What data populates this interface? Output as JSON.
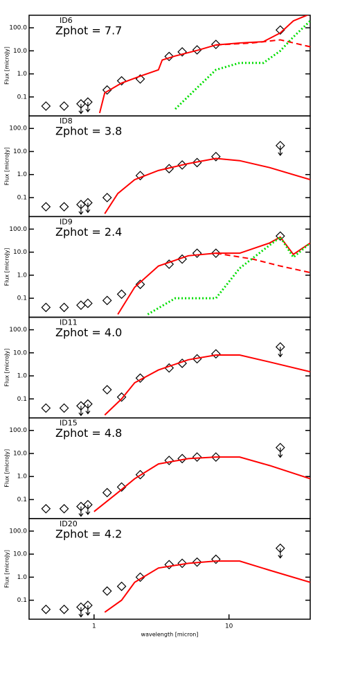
{
  "chart_data": [
    {
      "type": "line",
      "title": "ID6",
      "annotation": "Zphot = 7.7",
      "ylabel": "Flux [microJy]",
      "log_x": true,
      "log_y": true,
      "xlim": [
        0.33,
        40
      ],
      "ylim": [
        0.015,
        350
      ],
      "yticks": [
        0.1,
        {
          "value": 1,
          "label": "1.0"
        },
        {
          "value": 10,
          "label": "10.0"
        },
        {
          "value": 100,
          "label": "100.0"
        }
      ],
      "series": [
        {
          "color": "#000000",
          "marker": "diamond",
          "x": [
            0.44,
            0.6,
            0.8,
            0.9,
            1.25,
            1.6,
            2.2,
            3.6,
            4.5,
            5.8,
            8.0,
            24
          ],
          "values": [
            0.04,
            0.04,
            0.05,
            0.06,
            0.2,
            0.5,
            0.6,
            5.7,
            9,
            11,
            19,
            80
          ],
          "upper_limit": [
            false,
            false,
            true,
            true,
            false,
            false,
            false,
            false,
            false,
            false,
            false,
            false
          ]
        },
        {
          "color": "#ff0000",
          "style": "solid",
          "x": [
            1.1,
            1.2,
            1.6,
            2.2,
            3.0,
            3.2,
            4.0,
            6.0,
            8.0,
            12,
            18,
            24,
            30,
            40
          ],
          "values": [
            0.02,
            0.15,
            0.4,
            0.8,
            1.5,
            4,
            6,
            11,
            18,
            22,
            25,
            60,
            200,
            400
          ]
        },
        {
          "color": "#ff0000",
          "style": "dashed",
          "x": [
            8.0,
            15,
            24,
            40
          ],
          "values": [
            18,
            22,
            30,
            15
          ]
        },
        {
          "color": "#00dd00",
          "style": "dotted",
          "x": [
            4.0,
            6.0,
            8.0,
            12,
            18,
            24,
            30,
            40
          ],
          "values": [
            0.03,
            0.3,
            1.5,
            3,
            3,
            10,
            40,
            200
          ]
        }
      ]
    },
    {
      "type": "line",
      "title": "ID8",
      "annotation": "Zphot = 3.8",
      "ylabel": "Flux [microJy]",
      "log_x": true,
      "log_y": true,
      "xlim": [
        0.33,
        40
      ],
      "ylim": [
        0.015,
        350
      ],
      "yticks": [
        0.1,
        {
          "value": 1,
          "label": "1.0"
        },
        {
          "value": 10,
          "label": "10.0"
        },
        {
          "value": 100,
          "label": "100.0"
        }
      ],
      "series": [
        {
          "color": "#000000",
          "marker": "diamond",
          "x": [
            0.44,
            0.6,
            0.8,
            0.9,
            1.25,
            1.6,
            2.2,
            3.6,
            4.5,
            5.8,
            8.0,
            24
          ],
          "values": [
            0.04,
            0.04,
            0.05,
            0.06,
            0.1,
            null,
            0.9,
            1.8,
            2.6,
            3.3,
            6,
            18
          ],
          "upper_limit": [
            false,
            false,
            true,
            true,
            false,
            false,
            false,
            false,
            false,
            false,
            false,
            true
          ]
        },
        {
          "color": "#ff0000",
          "style": "solid",
          "x": [
            1.2,
            1.5,
            2.0,
            3.0,
            5.0,
            8.0,
            12,
            20,
            40
          ],
          "values": [
            0.02,
            0.15,
            0.6,
            1.5,
            3,
            5,
            4,
            2,
            0.6
          ]
        }
      ]
    },
    {
      "type": "line",
      "title": "ID9",
      "annotation": "Zphot = 2.4",
      "ylabel": "Flux [microJy]",
      "log_x": true,
      "log_y": true,
      "xlim": [
        0.33,
        40
      ],
      "ylim": [
        0.015,
        350
      ],
      "yticks": [
        0.1,
        {
          "value": 1,
          "label": "1.0"
        },
        {
          "value": 10,
          "label": "10.0"
        },
        {
          "value": 100,
          "label": "100.0"
        }
      ],
      "series": [
        {
          "color": "#000000",
          "marker": "diamond",
          "x": [
            0.44,
            0.6,
            0.8,
            0.9,
            1.25,
            1.6,
            2.2,
            3.6,
            4.5,
            5.8,
            8.0,
            24
          ],
          "values": [
            0.04,
            0.04,
            0.05,
            0.06,
            0.08,
            0.15,
            0.4,
            3,
            5,
            9,
            9,
            50
          ],
          "upper_limit": [
            false,
            false,
            false,
            false,
            false,
            false,
            false,
            false,
            false,
            false,
            false,
            false
          ]
        },
        {
          "color": "#ff0000",
          "style": "solid",
          "x": [
            1.5,
            2.0,
            3.0,
            5.0,
            8.0,
            12,
            20,
            24,
            30,
            40
          ],
          "values": [
            0.02,
            0.3,
            2.5,
            7,
            9,
            9,
            25,
            45,
            8,
            25
          ]
        },
        {
          "color": "#ff0000",
          "style": "dashed",
          "x": [
            8.0,
            15,
            24,
            40
          ],
          "values": [
            9,
            5,
            2.5,
            1.3
          ]
        },
        {
          "color": "#00dd00",
          "style": "dotted",
          "x": [
            2.5,
            4.0,
            8.0,
            12,
            20,
            24,
            30,
            40
          ],
          "values": [
            0.02,
            0.1,
            0.1,
            2,
            20,
            45,
            6,
            25
          ]
        }
      ]
    },
    {
      "type": "line",
      "title": "ID11",
      "annotation": "Zphot = 4.0",
      "ylabel": "Flux [microJy]",
      "log_x": true,
      "log_y": true,
      "xlim": [
        0.33,
        40
      ],
      "ylim": [
        0.015,
        350
      ],
      "yticks": [
        0.1,
        {
          "value": 1,
          "label": "1.0"
        },
        {
          "value": 10,
          "label": "10.0"
        },
        {
          "value": 100,
          "label": "100.0"
        }
      ],
      "series": [
        {
          "color": "#000000",
          "marker": "diamond",
          "x": [
            0.44,
            0.6,
            0.8,
            0.9,
            1.25,
            1.6,
            2.2,
            3.6,
            4.5,
            5.8,
            8.0,
            24
          ],
          "values": [
            0.04,
            0.04,
            0.05,
            0.06,
            0.25,
            0.12,
            0.8,
            2.2,
            3.5,
            5.5,
            9,
            18
          ],
          "upper_limit": [
            false,
            false,
            true,
            true,
            false,
            false,
            false,
            false,
            false,
            false,
            false,
            true
          ]
        },
        {
          "color": "#ff0000",
          "style": "solid",
          "x": [
            1.2,
            1.6,
            2.0,
            3.0,
            5.0,
            8.0,
            12,
            20,
            40
          ],
          "values": [
            0.02,
            0.1,
            0.5,
            1.8,
            5,
            8,
            8,
            4,
            1.5
          ]
        }
      ]
    },
    {
      "type": "line",
      "title": "ID15",
      "annotation": "Zphot = 4.8",
      "ylabel": "Flux [microJy]",
      "log_x": true,
      "log_y": true,
      "xlim": [
        0.33,
        40
      ],
      "ylim": [
        0.015,
        350
      ],
      "yticks": [
        0.1,
        {
          "value": 1,
          "label": "1.0"
        },
        {
          "value": 10,
          "label": "10.0"
        },
        {
          "value": 100,
          "label": "100.0"
        }
      ],
      "series": [
        {
          "color": "#000000",
          "marker": "diamond",
          "x": [
            0.44,
            0.6,
            0.8,
            0.9,
            1.25,
            1.6,
            2.2,
            3.6,
            4.5,
            5.8,
            8.0,
            24
          ],
          "values": [
            0.04,
            0.04,
            0.05,
            0.06,
            0.2,
            0.35,
            1.2,
            5,
            6,
            7,
            7,
            18
          ],
          "upper_limit": [
            false,
            false,
            true,
            true,
            false,
            false,
            false,
            false,
            false,
            false,
            false,
            true
          ]
        },
        {
          "color": "#ff0000",
          "style": "solid",
          "x": [
            1.0,
            1.5,
            2.0,
            3.0,
            5.0,
            8.0,
            12,
            20,
            40
          ],
          "values": [
            0.03,
            0.2,
            0.8,
            3.5,
            6,
            7,
            7,
            3,
            0.8
          ]
        }
      ]
    },
    {
      "type": "line",
      "title": "ID20",
      "annotation": "Zphot = 4.2",
      "ylabel": "Flux [microJy]",
      "xlabel": "wavelength [micron]",
      "log_x": true,
      "log_y": true,
      "xlim": [
        0.33,
        40
      ],
      "ylim": [
        0.015,
        350
      ],
      "xticks": [
        1,
        10
      ],
      "yticks": [
        0.1,
        {
          "value": 1,
          "label": "1.0"
        },
        {
          "value": 10,
          "label": "10.0"
        },
        {
          "value": 100,
          "label": "100.0"
        }
      ],
      "series": [
        {
          "color": "#000000",
          "marker": "diamond",
          "x": [
            0.44,
            0.6,
            0.8,
            0.9,
            1.25,
            1.6,
            2.2,
            3.6,
            4.5,
            5.8,
            8.0,
            24
          ],
          "values": [
            0.04,
            0.04,
            0.05,
            0.06,
            0.25,
            0.4,
            1,
            3.5,
            4,
            4.5,
            6,
            18
          ],
          "upper_limit": [
            false,
            false,
            true,
            true,
            false,
            false,
            false,
            false,
            false,
            false,
            false,
            true
          ]
        },
        {
          "color": "#ff0000",
          "style": "solid",
          "x": [
            1.2,
            1.6,
            2.0,
            3.0,
            5.0,
            8.0,
            12,
            20,
            40
          ],
          "values": [
            0.03,
            0.1,
            0.6,
            2.5,
            4,
            5,
            5,
            2,
            0.6
          ]
        }
      ]
    }
  ]
}
